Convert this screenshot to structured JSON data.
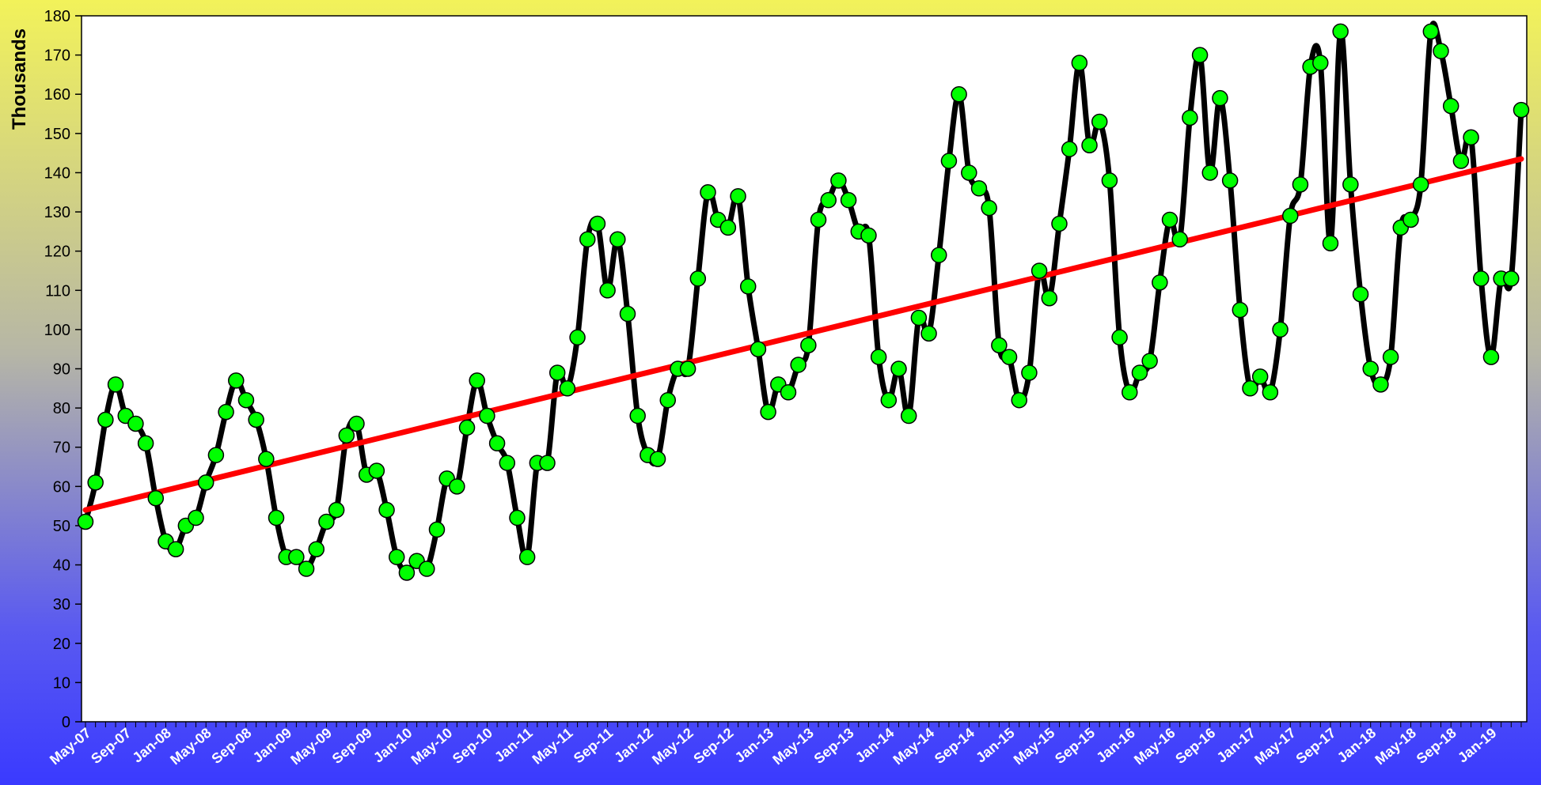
{
  "chart_data": {
    "type": "line",
    "ylabel": "Thousands",
    "ylim": [
      0,
      180
    ],
    "yticks": [
      0,
      10,
      20,
      30,
      40,
      50,
      60,
      70,
      80,
      90,
      100,
      110,
      120,
      130,
      140,
      150,
      160,
      170,
      180
    ],
    "x_start": "May-07",
    "x_labels": [
      "May-07",
      "Sep-07",
      "Jan-08",
      "May-08",
      "Sep-08",
      "Jan-09",
      "May-09",
      "Sep-09",
      "Jan-10",
      "May-10",
      "Sep-10",
      "Jan-11",
      "May-11",
      "Sep-11",
      "Jan-12",
      "May-12",
      "Sep-12",
      "Jan-13",
      "May-13",
      "Sep-13",
      "Jan-14",
      "May-14",
      "Sep-14",
      "Jan-15",
      "May-15",
      "Sep-15",
      "Jan-16",
      "May-16",
      "Sep-16",
      "Jan-17",
      "May-17",
      "Sep-17",
      "Jan-18",
      "May-18",
      "Sep-18",
      "Jan-19"
    ],
    "series": [
      {
        "values": [
          51,
          61,
          77,
          86,
          78,
          76,
          71,
          57,
          46,
          44,
          50,
          52,
          61,
          68,
          79,
          87,
          82,
          77,
          67,
          52,
          42,
          42,
          39,
          44,
          51,
          54,
          73,
          76,
          63,
          64,
          54,
          42,
          38,
          41,
          39,
          49,
          62,
          60,
          75,
          87,
          78,
          71,
          66,
          52,
          42,
          66,
          66,
          89,
          85,
          98,
          123,
          127,
          110,
          123,
          104,
          78,
          68,
          67,
          82,
          90,
          90,
          113,
          135,
          128,
          126,
          134,
          111,
          95,
          79,
          86,
          84,
          91,
          96,
          128,
          133,
          138,
          133,
          125,
          124,
          93,
          82,
          90,
          78,
          103,
          99,
          119,
          143,
          160,
          140,
          136,
          131,
          96,
          93,
          82,
          89,
          115,
          108,
          127,
          146,
          168,
          147,
          153,
          138,
          98,
          84,
          89,
          92,
          112,
          128,
          123,
          154,
          170,
          140,
          159,
          138,
          105,
          85,
          88,
          84,
          100,
          129,
          137,
          167,
          168,
          122,
          176,
          137,
          109,
          90,
          86,
          93,
          126,
          128,
          137,
          176,
          171,
          157,
          143,
          149,
          113,
          93,
          113,
          113,
          156
        ],
        "color": "#000000",
        "marker_color": "#00ff00"
      }
    ],
    "trendline": {
      "start": 54,
      "end": 143.5,
      "color": "#ff0000"
    },
    "grid": false,
    "legend": "none"
  }
}
